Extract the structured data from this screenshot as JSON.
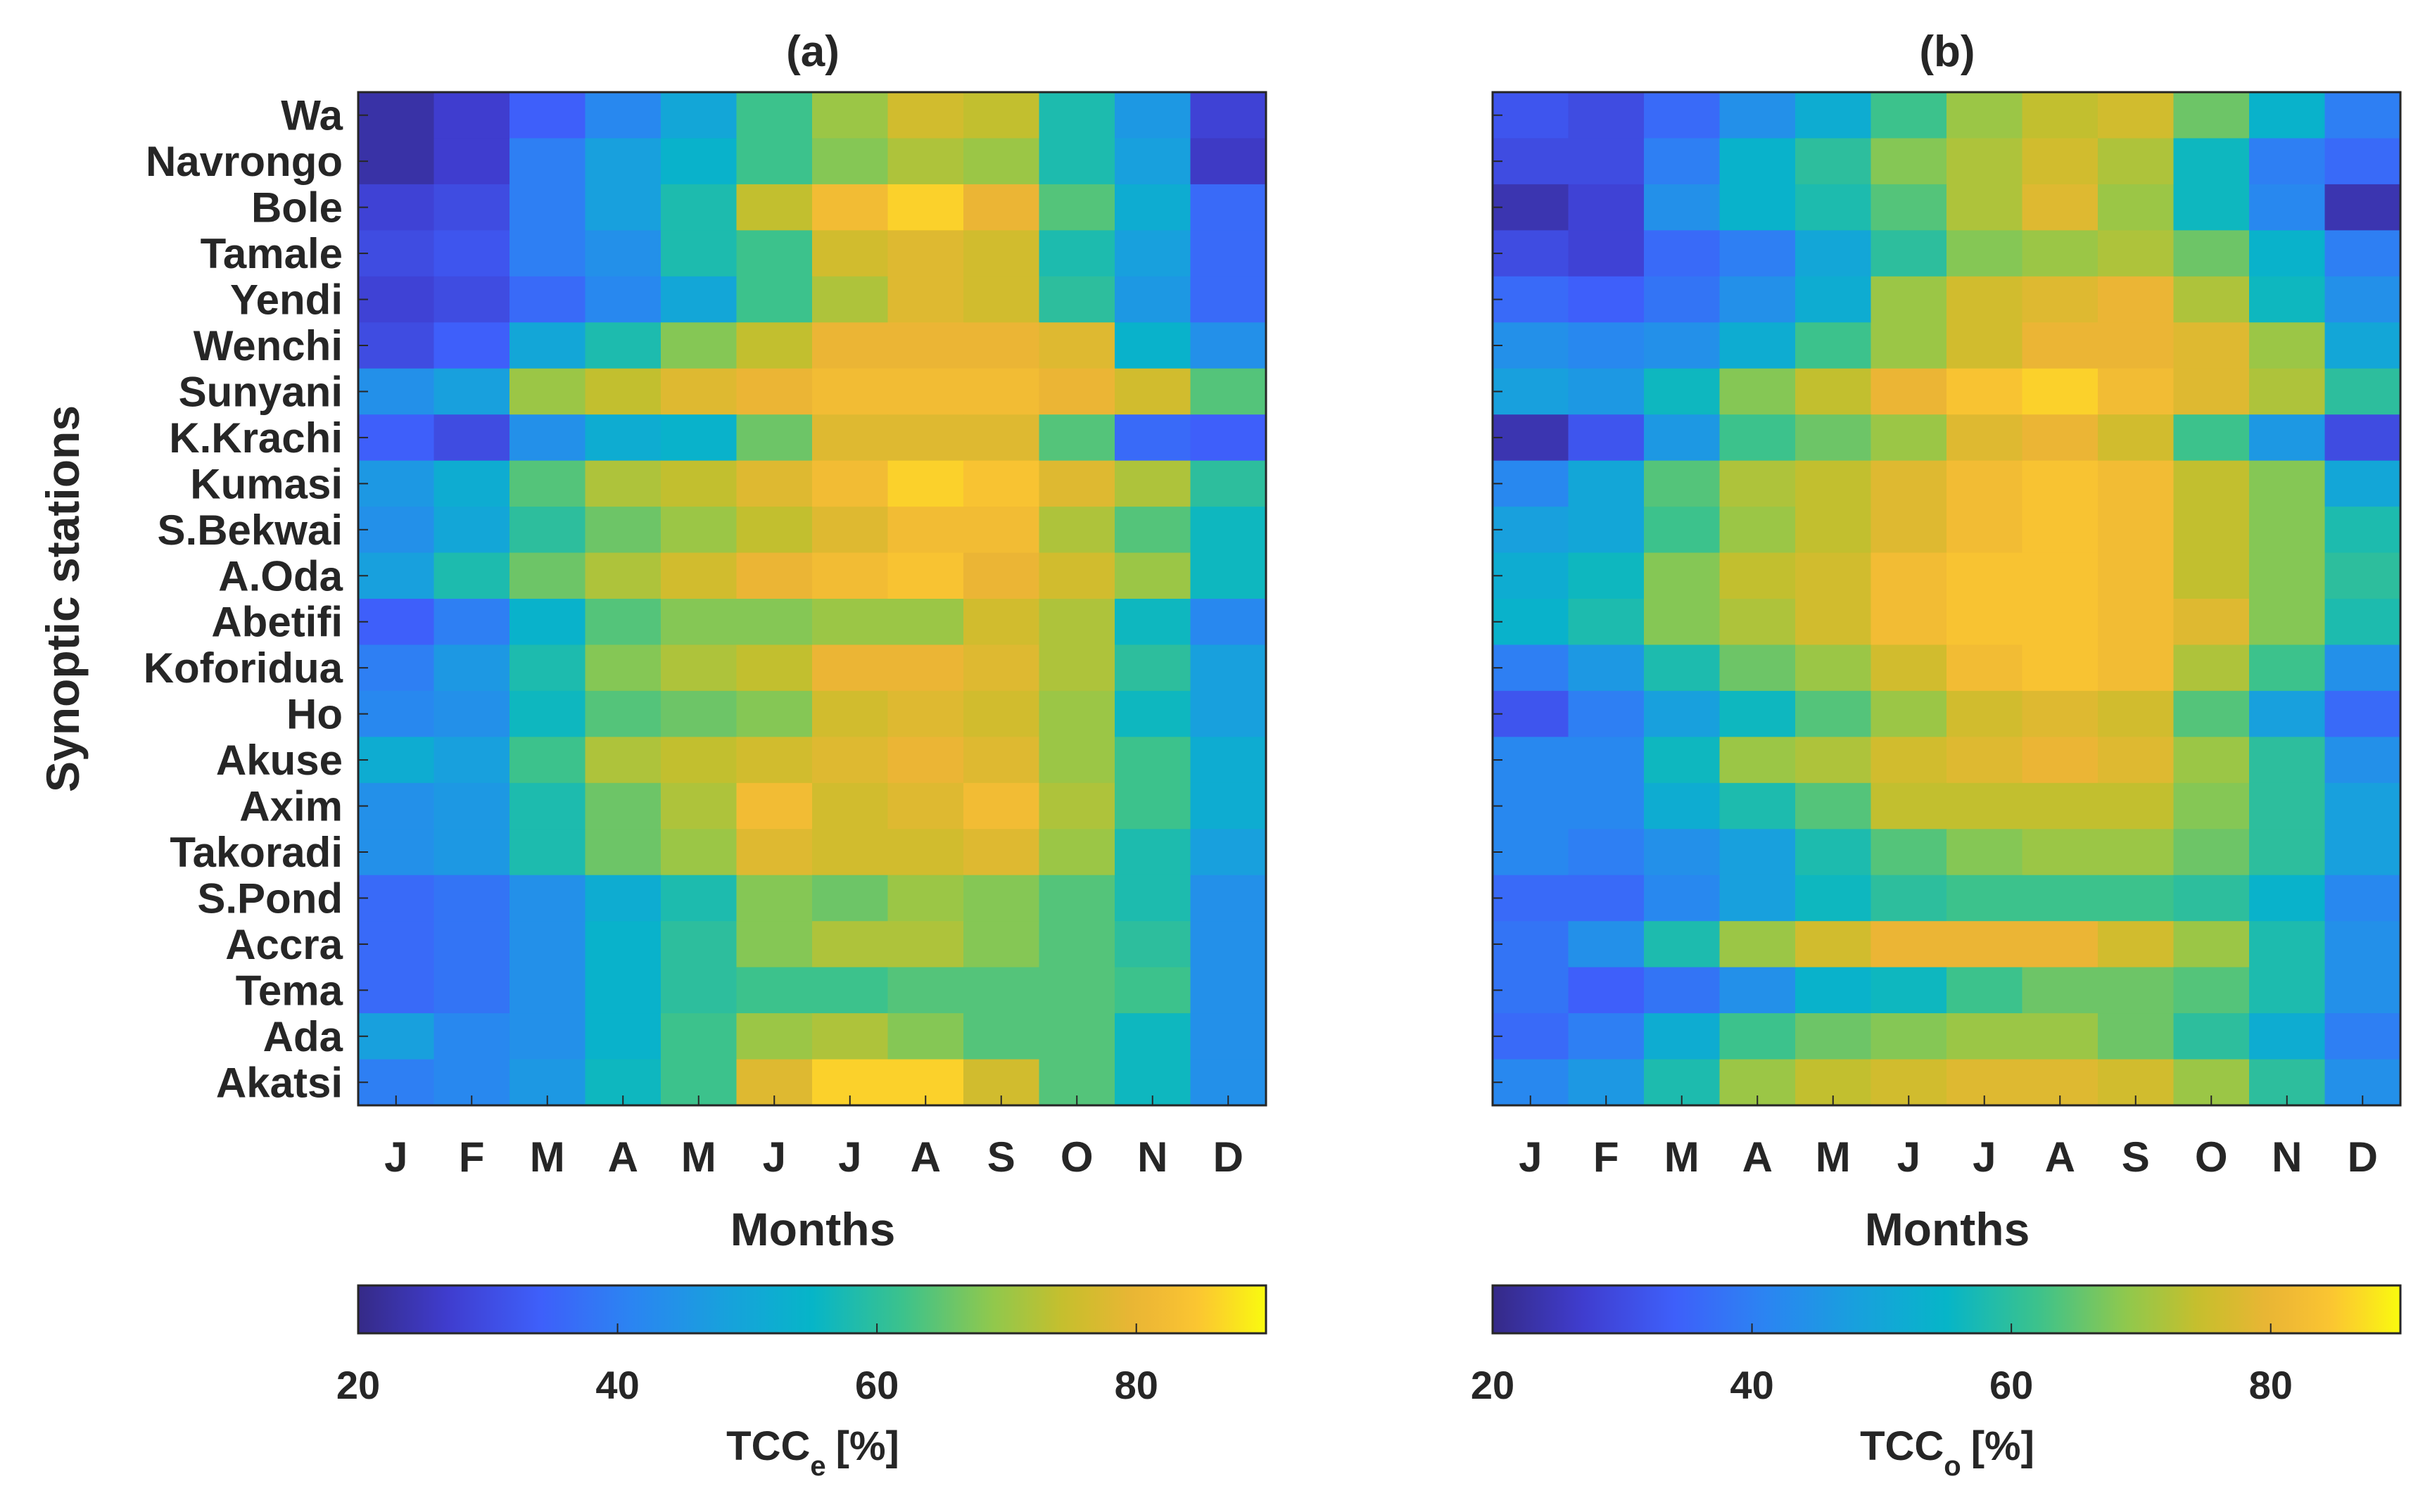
{
  "chart_data": [
    {
      "id": "a",
      "type": "heatmap",
      "title": "(a)",
      "xlabel": "Months",
      "ylabel": "Synoptic stations",
      "colorbar": {
        "label_main": "TCC",
        "label_sub": "e",
        "label_unit": "[%]",
        "range": [
          20,
          90
        ],
        "ticks": [
          20,
          40,
          60,
          80
        ]
      },
      "columns": [
        "J",
        "F",
        "M",
        "A",
        "M",
        "J",
        "J",
        "A",
        "S",
        "O",
        "N",
        "D"
      ],
      "rows": [
        "Wa",
        "Navrongo",
        "Bole",
        "Tamale",
        "Yendi",
        "Wenchi",
        "Sunyani",
        "K.Krachi",
        "Kumasi",
        "S.Bekwai",
        "A.Oda",
        "Abetifi",
        "Koforidua",
        "Ho",
        "Akuse",
        "Axim",
        "Takoradi",
        "S.Pond",
        "Accra",
        "Tema",
        "Ada",
        "Akatsi"
      ],
      "values": [
        [
          23,
          27,
          34,
          42,
          50,
          62,
          70,
          76,
          74,
          58,
          46,
          28
        ],
        [
          23,
          27,
          40,
          48,
          54,
          62,
          68,
          72,
          70,
          58,
          48,
          26
        ],
        [
          28,
          30,
          40,
          48,
          58,
          74,
          82,
          86,
          80,
          64,
          52,
          36
        ],
        [
          30,
          32,
          40,
          44,
          58,
          62,
          76,
          78,
          76,
          58,
          48,
          36
        ],
        [
          28,
          30,
          36,
          42,
          50,
          62,
          72,
          78,
          76,
          60,
          46,
          36
        ],
        [
          30,
          34,
          50,
          58,
          68,
          74,
          80,
          80,
          80,
          78,
          54,
          44
        ],
        [
          44,
          48,
          70,
          74,
          78,
          80,
          82,
          82,
          82,
          80,
          76,
          64
        ],
        [
          34,
          30,
          44,
          52,
          54,
          66,
          78,
          78,
          78,
          64,
          36,
          34
        ],
        [
          46,
          52,
          64,
          72,
          74,
          78,
          82,
          86,
          84,
          78,
          72,
          60
        ],
        [
          44,
          50,
          60,
          66,
          70,
          74,
          78,
          82,
          82,
          72,
          64,
          56
        ],
        [
          48,
          58,
          66,
          72,
          76,
          80,
          82,
          84,
          80,
          76,
          70,
          56
        ],
        [
          34,
          40,
          54,
          64,
          68,
          68,
          70,
          70,
          76,
          72,
          56,
          42
        ],
        [
          40,
          46,
          58,
          68,
          72,
          74,
          80,
          80,
          78,
          72,
          60,
          48
        ],
        [
          42,
          44,
          56,
          64,
          66,
          68,
          76,
          78,
          76,
          70,
          56,
          48
        ],
        [
          52,
          48,
          62,
          72,
          74,
          76,
          78,
          80,
          78,
          70,
          62,
          52
        ],
        [
          44,
          46,
          58,
          66,
          72,
          82,
          76,
          78,
          82,
          72,
          62,
          52
        ],
        [
          44,
          46,
          58,
          66,
          70,
          78,
          76,
          76,
          78,
          70,
          58,
          48
        ],
        [
          36,
          38,
          44,
          52,
          58,
          68,
          66,
          70,
          68,
          64,
          58,
          44
        ],
        [
          36,
          38,
          44,
          54,
          60,
          68,
          72,
          72,
          68,
          64,
          60,
          44
        ],
        [
          36,
          38,
          44,
          54,
          60,
          62,
          62,
          64,
          64,
          64,
          62,
          44
        ],
        [
          48,
          42,
          44,
          54,
          62,
          70,
          72,
          68,
          64,
          64,
          56,
          44
        ],
        [
          40,
          42,
          46,
          56,
          62,
          78,
          86,
          86,
          76,
          64,
          56,
          44
        ]
      ]
    },
    {
      "id": "b",
      "type": "heatmap",
      "title": "(b)",
      "xlabel": "Months",
      "ylabel": "",
      "colorbar": {
        "label_main": "TCC",
        "label_sub": "o",
        "label_unit": "[%]",
        "range": [
          20,
          90
        ],
        "ticks": [
          20,
          40,
          60,
          80
        ]
      },
      "columns": [
        "J",
        "F",
        "M",
        "A",
        "M",
        "J",
        "J",
        "A",
        "S",
        "O",
        "N",
        "D"
      ],
      "rows": [
        "Wa",
        "Navrongo",
        "Bole",
        "Tamale",
        "Yendi",
        "Wenchi",
        "Sunyani",
        "K.Krachi",
        "Kumasi",
        "S.Bekwai",
        "A.Oda",
        "Abetifi",
        "Koforidua",
        "Ho",
        "Akuse",
        "Axim",
        "Takoradi",
        "S.Pond",
        "Accra",
        "Tema",
        "Ada",
        "Akatsi"
      ],
      "values": [
        [
          32,
          30,
          36,
          44,
          52,
          62,
          70,
          74,
          76,
          66,
          54,
          40
        ],
        [
          30,
          30,
          40,
          54,
          60,
          68,
          72,
          76,
          72,
          56,
          40,
          36
        ],
        [
          24,
          28,
          44,
          54,
          58,
          64,
          72,
          78,
          70,
          56,
          42,
          24
        ],
        [
          30,
          28,
          36,
          40,
          50,
          60,
          68,
          70,
          72,
          66,
          54,
          40
        ],
        [
          36,
          34,
          38,
          44,
          52,
          70,
          76,
          78,
          80,
          72,
          56,
          44
        ],
        [
          44,
          42,
          44,
          52,
          62,
          70,
          76,
          80,
          80,
          78,
          70,
          50
        ],
        [
          48,
          46,
          56,
          68,
          74,
          80,
          84,
          86,
          82,
          78,
          72,
          60
        ],
        [
          24,
          32,
          46,
          62,
          66,
          70,
          78,
          80,
          76,
          62,
          46,
          30
        ],
        [
          42,
          50,
          64,
          72,
          74,
          78,
          82,
          84,
          82,
          74,
          68,
          50
        ],
        [
          48,
          50,
          62,
          70,
          74,
          78,
          82,
          84,
          82,
          74,
          68,
          58
        ],
        [
          52,
          56,
          68,
          74,
          76,
          82,
          84,
          84,
          82,
          74,
          68,
          60
        ],
        [
          54,
          58,
          68,
          72,
          76,
          82,
          84,
          84,
          82,
          78,
          68,
          58
        ],
        [
          40,
          46,
          58,
          66,
          70,
          76,
          82,
          84,
          82,
          72,
          62,
          44
        ],
        [
          32,
          40,
          48,
          56,
          64,
          70,
          76,
          78,
          76,
          64,
          48,
          36
        ],
        [
          42,
          42,
          56,
          70,
          72,
          76,
          78,
          80,
          78,
          70,
          60,
          44
        ],
        [
          42,
          42,
          52,
          58,
          64,
          74,
          74,
          74,
          74,
          68,
          60,
          48
        ],
        [
          42,
          40,
          44,
          48,
          58,
          64,
          68,
          70,
          70,
          66,
          60,
          48
        ],
        [
          36,
          36,
          42,
          48,
          56,
          60,
          62,
          62,
          62,
          60,
          54,
          42
        ],
        [
          38,
          44,
          58,
          70,
          76,
          80,
          80,
          80,
          76,
          70,
          58,
          44
        ],
        [
          38,
          34,
          38,
          44,
          54,
          56,
          62,
          66,
          66,
          64,
          58,
          44
        ],
        [
          36,
          40,
          52,
          62,
          66,
          68,
          70,
          70,
          66,
          60,
          52,
          40
        ],
        [
          42,
          46,
          58,
          70,
          74,
          76,
          78,
          78,
          76,
          70,
          60,
          44
        ]
      ]
    }
  ]
}
